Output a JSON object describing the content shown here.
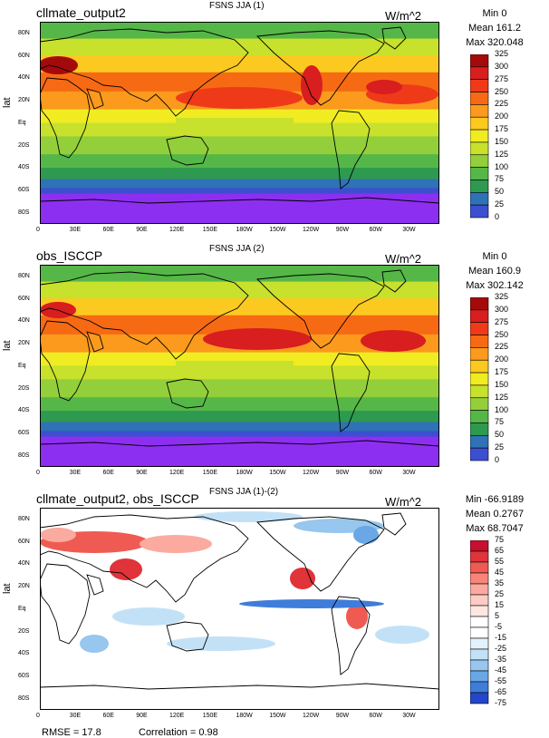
{
  "panels": [
    {
      "title": "FSNS JJA (1)",
      "name": "cllmate_output2",
      "units": "W/m^2",
      "stats": {
        "min": "Min 0",
        "mean": "Mean 161.2",
        "max": "Max 320.048"
      },
      "ylabel": "lat",
      "lat_ticks": [
        "80N",
        "60N",
        "40N",
        "20N",
        "Eq",
        "20S",
        "40S",
        "60S",
        "80S"
      ],
      "lon_ticks": [
        "0",
        "30E",
        "60E",
        "90E",
        "120E",
        "150E",
        "180W",
        "150W",
        "120W",
        "90W",
        "60W",
        "30W"
      ],
      "colorbar_labels": [
        "325",
        "300",
        "275",
        "250",
        "225",
        "200",
        "175",
        "150",
        "125",
        "100",
        "75",
        "50",
        "25",
        "0"
      ],
      "colorbar_colors": [
        "#a50a0a",
        "#d81e1e",
        "#ef3a19",
        "#f76a14",
        "#fb9a1c",
        "#fcc920",
        "#f0ec21",
        "#c7e12c",
        "#93cf3a",
        "#55b747",
        "#2d9a4f",
        "#2f72b5",
        "#3c4fd0",
        "#8d2ff0"
      ],
      "kind": "absolute"
    },
    {
      "title": "FSNS JJA (2)",
      "name": "obs_ISCCP",
      "units": "W/m^2",
      "stats": {
        "min": "Min 0",
        "mean": "Mean 160.9",
        "max": "Max 302.142"
      },
      "ylabel": "lat",
      "lat_ticks": [
        "80N",
        "60N",
        "40N",
        "20N",
        "Eq",
        "20S",
        "40S",
        "60S",
        "80S"
      ],
      "lon_ticks": [
        "0",
        "30E",
        "60E",
        "90E",
        "120E",
        "150E",
        "180W",
        "150W",
        "120W",
        "90W",
        "60W",
        "30W"
      ],
      "colorbar_labels": [
        "325",
        "300",
        "275",
        "250",
        "225",
        "200",
        "175",
        "150",
        "125",
        "100",
        "75",
        "50",
        "25",
        "0"
      ],
      "colorbar_colors": [
        "#a50a0a",
        "#d81e1e",
        "#ef3a19",
        "#f76a14",
        "#fb9a1c",
        "#fcc920",
        "#f0ec21",
        "#c7e12c",
        "#93cf3a",
        "#55b747",
        "#2d9a4f",
        "#2f72b5",
        "#3c4fd0",
        "#8d2ff0"
      ],
      "kind": "absolute"
    },
    {
      "title": "FSNS JJA (1)-(2)",
      "name": "cllmate_output2, obs_ISCCP",
      "units": "W/m^2",
      "stats": {
        "min": "Min -66.9189",
        "mean": "Mean 0.2767",
        "max": "Max 68.7047"
      },
      "ylabel": "lat",
      "lat_ticks": [
        "80N",
        "60N",
        "40N",
        "20N",
        "Eq",
        "20S",
        "40S",
        "60S",
        "80S"
      ],
      "lon_ticks": [
        "0",
        "30E",
        "60E",
        "90E",
        "120E",
        "150E",
        "180W",
        "150W",
        "120W",
        "90W",
        "60W",
        "30W"
      ],
      "colorbar_labels": [
        "75",
        "65",
        "55",
        "45",
        "35",
        "25",
        "15",
        "5",
        "-5",
        "-15",
        "-25",
        "-35",
        "-45",
        "-55",
        "-65",
        "-75"
      ],
      "colorbar_colors": [
        "#c8102e",
        "#e0333a",
        "#ef5b52",
        "#f7857a",
        "#fbaaa0",
        "#fdccc3",
        "#fee7e1",
        "#ffffff",
        "#ffffff",
        "#e2f1fb",
        "#c3e1f6",
        "#97c6ee",
        "#6aa7e5",
        "#3f7ddb",
        "#2446c9",
        "#1520b0"
      ],
      "kind": "diff"
    }
  ],
  "footer": {
    "rmse": "RMSE = 17.8",
    "correlation": "Correlation = 0.98"
  }
}
